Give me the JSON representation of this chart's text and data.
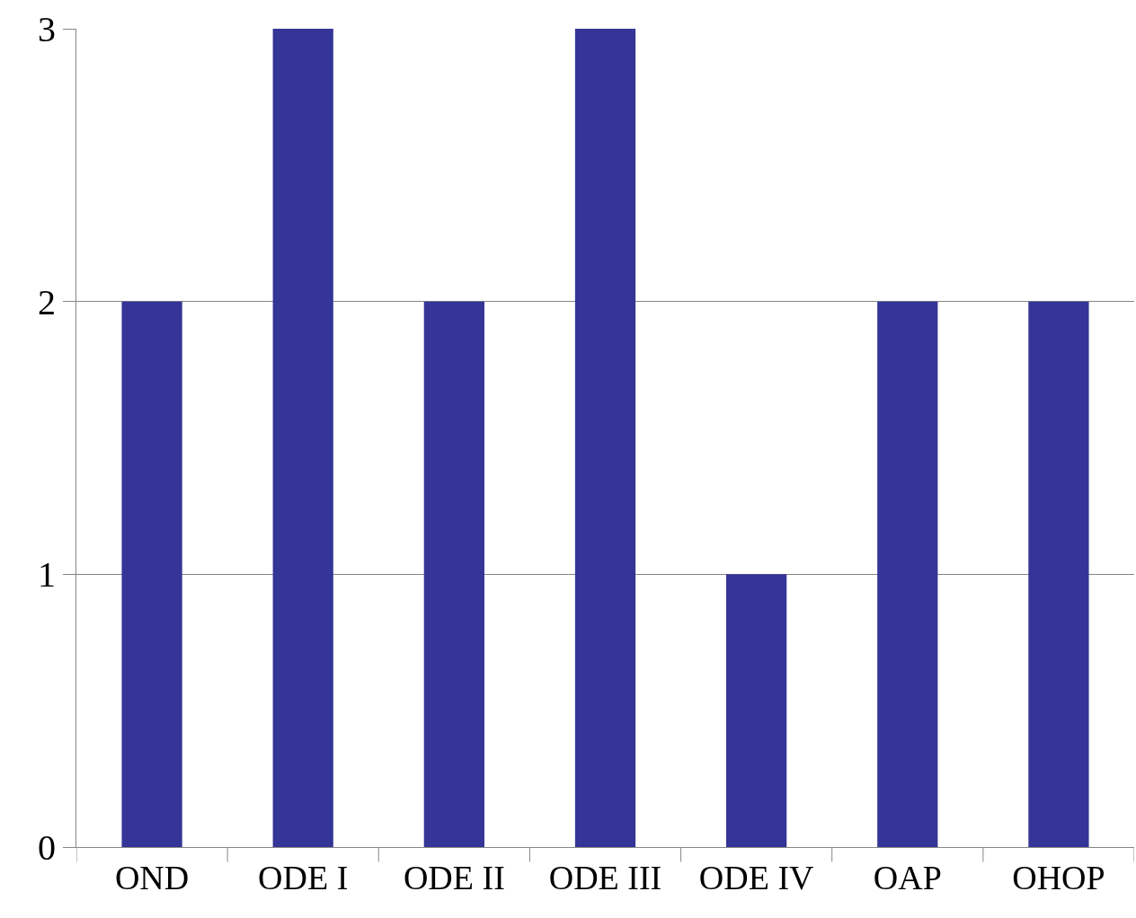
{
  "chart_data": {
    "type": "bar",
    "categories": [
      "OND",
      "ODE I",
      "ODE II",
      "ODE III",
      "ODE IV",
      "OAP",
      "OHOP"
    ],
    "values": [
      2,
      3,
      2,
      3,
      1,
      2,
      2
    ],
    "color": "#353597",
    "ylim": [
      0,
      3
    ],
    "yticks": [
      0,
      1,
      2,
      3
    ],
    "grid": "y"
  }
}
